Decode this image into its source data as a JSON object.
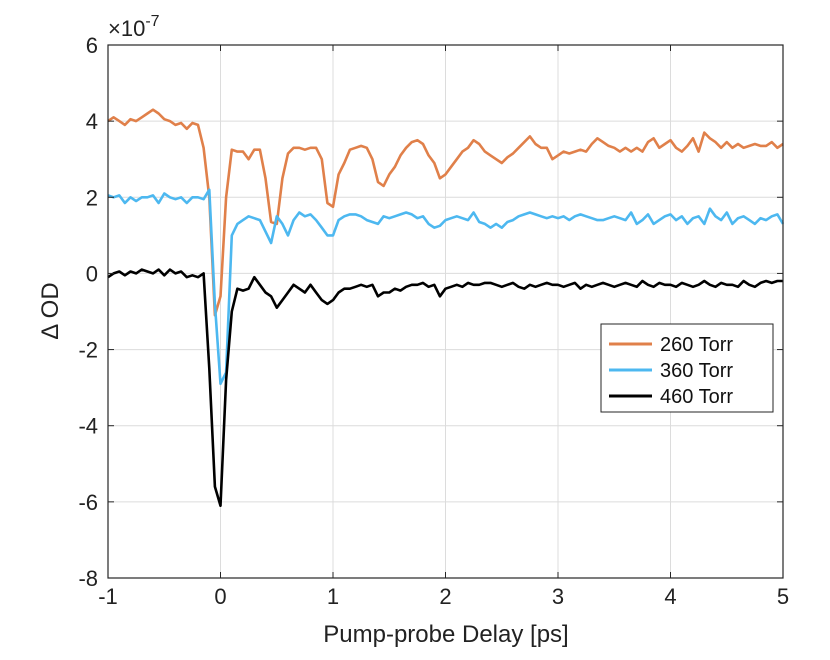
{
  "chart_data": {
    "type": "line",
    "title": "",
    "xlabel": "Pump-probe Delay [ps]",
    "ylabel": "Δ OD",
    "y_exponent_label": "×10",
    "y_exponent_power": "-7",
    "xlim": [
      -1,
      5
    ],
    "ylim": [
      -8,
      6
    ],
    "xticks": [
      -1,
      0,
      1,
      2,
      3,
      4,
      5
    ],
    "yticks": [
      -8,
      -6,
      -4,
      -2,
      0,
      2,
      4,
      6
    ],
    "grid": true,
    "legend_position": "right-middle",
    "series": [
      {
        "name": "260 Torr",
        "color": "#E0804A",
        "x": [
          -1.0,
          -0.95,
          -0.9,
          -0.85,
          -0.8,
          -0.75,
          -0.7,
          -0.65,
          -0.6,
          -0.55,
          -0.5,
          -0.45,
          -0.4,
          -0.35,
          -0.3,
          -0.25,
          -0.2,
          -0.15,
          -0.1,
          -0.05,
          0.0,
          0.05,
          0.1,
          0.15,
          0.2,
          0.25,
          0.3,
          0.35,
          0.4,
          0.45,
          0.5,
          0.55,
          0.6,
          0.65,
          0.7,
          0.75,
          0.8,
          0.85,
          0.9,
          0.95,
          1.0,
          1.05,
          1.1,
          1.15,
          1.2,
          1.25,
          1.3,
          1.35,
          1.4,
          1.45,
          1.5,
          1.55,
          1.6,
          1.65,
          1.7,
          1.75,
          1.8,
          1.85,
          1.9,
          1.95,
          2.0,
          2.05,
          2.1,
          2.15,
          2.2,
          2.25,
          2.3,
          2.35,
          2.4,
          2.45,
          2.5,
          2.55,
          2.6,
          2.65,
          2.7,
          2.75,
          2.8,
          2.85,
          2.9,
          2.95,
          3.0,
          3.05,
          3.1,
          3.15,
          3.2,
          3.25,
          3.3,
          3.35,
          3.4,
          3.45,
          3.5,
          3.55,
          3.6,
          3.65,
          3.7,
          3.75,
          3.8,
          3.85,
          3.9,
          3.95,
          4.0,
          4.05,
          4.1,
          4.15,
          4.2,
          4.25,
          4.3,
          4.35,
          4.4,
          4.45,
          4.5,
          4.55,
          4.6,
          4.65,
          4.7,
          4.75,
          4.8,
          4.85,
          4.9,
          4.95,
          5.0
        ],
        "y": [
          4.0,
          4.1,
          4.0,
          3.9,
          4.05,
          4.0,
          4.1,
          4.2,
          4.3,
          4.2,
          4.05,
          4.0,
          3.9,
          3.95,
          3.8,
          3.95,
          3.9,
          3.3,
          2.0,
          -1.1,
          -0.6,
          2.0,
          3.25,
          3.2,
          3.2,
          3.0,
          3.25,
          3.25,
          2.5,
          1.35,
          1.3,
          2.5,
          3.15,
          3.3,
          3.3,
          3.25,
          3.3,
          3.3,
          3.0,
          1.85,
          1.75,
          2.6,
          2.9,
          3.25,
          3.3,
          3.35,
          3.3,
          3.0,
          2.4,
          2.3,
          2.6,
          2.8,
          3.1,
          3.3,
          3.45,
          3.5,
          3.4,
          3.1,
          2.9,
          2.5,
          2.6,
          2.8,
          3.0,
          3.2,
          3.3,
          3.5,
          3.4,
          3.2,
          3.1,
          3.0,
          2.9,
          3.05,
          3.15,
          3.3,
          3.45,
          3.6,
          3.4,
          3.3,
          3.3,
          3.0,
          3.1,
          3.2,
          3.15,
          3.2,
          3.25,
          3.2,
          3.4,
          3.55,
          3.45,
          3.35,
          3.3,
          3.2,
          3.3,
          3.2,
          3.3,
          3.2,
          3.45,
          3.55,
          3.3,
          3.4,
          3.5,
          3.3,
          3.2,
          3.35,
          3.55,
          3.2,
          3.7,
          3.55,
          3.45,
          3.3,
          3.45,
          3.3,
          3.4,
          3.3,
          3.35,
          3.4,
          3.35,
          3.35,
          3.45,
          3.3,
          3.4
        ]
      },
      {
        "name": "360 Torr",
        "color": "#4DB8F0",
        "x": [
          -1.0,
          -0.95,
          -0.9,
          -0.85,
          -0.8,
          -0.75,
          -0.7,
          -0.65,
          -0.6,
          -0.55,
          -0.5,
          -0.45,
          -0.4,
          -0.35,
          -0.3,
          -0.25,
          -0.2,
          -0.15,
          -0.1,
          -0.05,
          0.0,
          0.05,
          0.1,
          0.15,
          0.2,
          0.25,
          0.3,
          0.35,
          0.4,
          0.45,
          0.5,
          0.55,
          0.6,
          0.65,
          0.7,
          0.75,
          0.8,
          0.85,
          0.9,
          0.95,
          1.0,
          1.05,
          1.1,
          1.15,
          1.2,
          1.25,
          1.3,
          1.35,
          1.4,
          1.45,
          1.5,
          1.55,
          1.6,
          1.65,
          1.7,
          1.75,
          1.8,
          1.85,
          1.9,
          1.95,
          2.0,
          2.05,
          2.1,
          2.15,
          2.2,
          2.25,
          2.3,
          2.35,
          2.4,
          2.45,
          2.5,
          2.55,
          2.6,
          2.65,
          2.7,
          2.75,
          2.8,
          2.85,
          2.9,
          2.95,
          3.0,
          3.05,
          3.1,
          3.15,
          3.2,
          3.25,
          3.3,
          3.35,
          3.4,
          3.45,
          3.5,
          3.55,
          3.6,
          3.65,
          3.7,
          3.75,
          3.8,
          3.85,
          3.9,
          3.95,
          4.0,
          4.05,
          4.1,
          4.15,
          4.2,
          4.25,
          4.3,
          4.35,
          4.4,
          4.45,
          4.5,
          4.55,
          4.6,
          4.65,
          4.7,
          4.75,
          4.8,
          4.85,
          4.9,
          4.95,
          5.0
        ],
        "y": [
          2.05,
          2.0,
          2.05,
          1.85,
          2.0,
          1.9,
          2.0,
          2.0,
          2.05,
          1.85,
          2.1,
          2.0,
          1.95,
          2.0,
          1.85,
          2.0,
          2.0,
          1.95,
          2.2,
          -0.8,
          -2.9,
          -2.6,
          1.0,
          1.3,
          1.4,
          1.5,
          1.45,
          1.4,
          1.1,
          0.8,
          1.5,
          1.3,
          1.0,
          1.4,
          1.6,
          1.5,
          1.55,
          1.4,
          1.2,
          1.0,
          1.0,
          1.4,
          1.5,
          1.55,
          1.55,
          1.5,
          1.4,
          1.35,
          1.3,
          1.5,
          1.45,
          1.5,
          1.55,
          1.6,
          1.55,
          1.45,
          1.5,
          1.3,
          1.2,
          1.25,
          1.4,
          1.45,
          1.5,
          1.45,
          1.4,
          1.6,
          1.35,
          1.3,
          1.2,
          1.3,
          1.2,
          1.35,
          1.4,
          1.5,
          1.55,
          1.6,
          1.55,
          1.5,
          1.45,
          1.5,
          1.45,
          1.5,
          1.4,
          1.5,
          1.55,
          1.5,
          1.45,
          1.4,
          1.4,
          1.45,
          1.5,
          1.45,
          1.4,
          1.6,
          1.3,
          1.4,
          1.55,
          1.3,
          1.4,
          1.5,
          1.55,
          1.4,
          1.5,
          1.3,
          1.45,
          1.5,
          1.3,
          1.7,
          1.5,
          1.4,
          1.6,
          1.3,
          1.45,
          1.5,
          1.4,
          1.3,
          1.45,
          1.4,
          1.5,
          1.55,
          1.3
        ]
      },
      {
        "name": "460 Torr",
        "color": "#000000",
        "x": [
          -1.0,
          -0.95,
          -0.9,
          -0.85,
          -0.8,
          -0.75,
          -0.7,
          -0.65,
          -0.6,
          -0.55,
          -0.5,
          -0.45,
          -0.4,
          -0.35,
          -0.3,
          -0.25,
          -0.2,
          -0.15,
          -0.1,
          -0.05,
          0.0,
          0.05,
          0.1,
          0.15,
          0.2,
          0.25,
          0.3,
          0.35,
          0.4,
          0.45,
          0.5,
          0.55,
          0.6,
          0.65,
          0.7,
          0.75,
          0.8,
          0.85,
          0.9,
          0.95,
          1.0,
          1.05,
          1.1,
          1.15,
          1.2,
          1.25,
          1.3,
          1.35,
          1.4,
          1.45,
          1.5,
          1.55,
          1.6,
          1.65,
          1.7,
          1.75,
          1.8,
          1.85,
          1.9,
          1.95,
          2.0,
          2.05,
          2.1,
          2.15,
          2.2,
          2.25,
          2.3,
          2.35,
          2.4,
          2.45,
          2.5,
          2.55,
          2.6,
          2.65,
          2.7,
          2.75,
          2.8,
          2.85,
          2.9,
          2.95,
          3.0,
          3.05,
          3.1,
          3.15,
          3.2,
          3.25,
          3.3,
          3.35,
          3.4,
          3.45,
          3.5,
          3.55,
          3.6,
          3.65,
          3.7,
          3.75,
          3.8,
          3.85,
          3.9,
          3.95,
          4.0,
          4.05,
          4.1,
          4.15,
          4.2,
          4.25,
          4.3,
          4.35,
          4.4,
          4.45,
          4.5,
          4.55,
          4.6,
          4.65,
          4.7,
          4.75,
          4.8,
          4.85,
          4.9,
          4.95,
          5.0
        ],
        "y": [
          -0.1,
          0.0,
          0.05,
          -0.05,
          0.05,
          0.0,
          0.1,
          0.05,
          0.0,
          0.1,
          -0.05,
          0.1,
          0.0,
          0.05,
          -0.1,
          -0.05,
          -0.1,
          0.0,
          -2.5,
          -5.6,
          -6.1,
          -2.8,
          -1.0,
          -0.4,
          -0.45,
          -0.4,
          -0.1,
          -0.3,
          -0.5,
          -0.6,
          -0.9,
          -0.7,
          -0.5,
          -0.3,
          -0.4,
          -0.5,
          -0.3,
          -0.5,
          -0.7,
          -0.8,
          -0.7,
          -0.5,
          -0.4,
          -0.4,
          -0.35,
          -0.3,
          -0.35,
          -0.3,
          -0.6,
          -0.5,
          -0.5,
          -0.4,
          -0.45,
          -0.35,
          -0.3,
          -0.3,
          -0.25,
          -0.35,
          -0.3,
          -0.6,
          -0.4,
          -0.35,
          -0.3,
          -0.35,
          -0.25,
          -0.3,
          -0.3,
          -0.25,
          -0.25,
          -0.3,
          -0.35,
          -0.3,
          -0.25,
          -0.35,
          -0.4,
          -0.3,
          -0.35,
          -0.3,
          -0.25,
          -0.3,
          -0.3,
          -0.35,
          -0.3,
          -0.25,
          -0.4,
          -0.3,
          -0.35,
          -0.3,
          -0.25,
          -0.3,
          -0.35,
          -0.3,
          -0.25,
          -0.3,
          -0.35,
          -0.2,
          -0.3,
          -0.35,
          -0.25,
          -0.3,
          -0.3,
          -0.35,
          -0.25,
          -0.3,
          -0.35,
          -0.3,
          -0.2,
          -0.3,
          -0.35,
          -0.25,
          -0.3,
          -0.3,
          -0.35,
          -0.2,
          -0.3,
          -0.35,
          -0.25,
          -0.2,
          -0.25,
          -0.2,
          -0.2
        ]
      }
    ]
  }
}
